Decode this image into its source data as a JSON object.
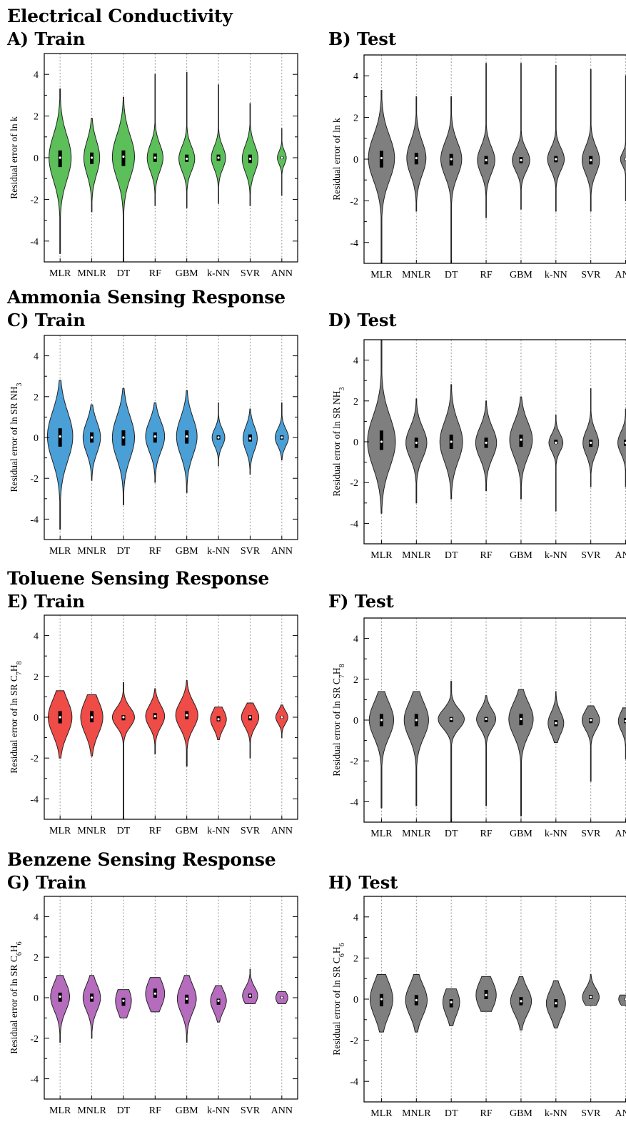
{
  "sections": [
    {
      "title": "Electrical Conductivity"
    },
    {
      "title": "Ammonia Sensing Response"
    },
    {
      "title": "Toluene Sensing Response"
    },
    {
      "title": "Benzene Sensing Response"
    }
  ],
  "colors": {
    "green": "#5cbf5a",
    "blue": "#4a9fd6",
    "red": "#ef4b47",
    "purple": "#b56cbd",
    "gray": "#7f7f7f"
  },
  "chart_data": [
    {
      "panel": "A) Train",
      "type": "violin",
      "color": "#5cbf5a",
      "ylabel": "Residual error of ln k",
      "categories": [
        "MLR",
        "MNLR",
        "DT",
        "RF",
        "GBM",
        "k-NN",
        "SVR",
        "ANN"
      ],
      "yticks": [
        "4",
        "2",
        "0",
        "-2",
        "-4"
      ],
      "ylim": [
        -5,
        5
      ],
      "grid": "vertical dashed",
      "series": [
        {
          "category": "MLR",
          "min": -4.6,
          "max": 3.3,
          "q1": -0.45,
          "q3": 0.35,
          "median": 0.0,
          "spread": 0.7
        },
        {
          "category": "MNLR",
          "min": -2.6,
          "max": 1.9,
          "q1": -0.3,
          "q3": 0.25,
          "median": 0.0,
          "spread": 0.5
        },
        {
          "category": "DT",
          "min": -5.0,
          "max": 2.9,
          "q1": -0.4,
          "q3": 0.35,
          "median": 0.05,
          "spread": 0.7
        },
        {
          "category": "RF",
          "min": -2.3,
          "max": 4.0,
          "q1": -0.2,
          "q3": 0.2,
          "median": 0.0,
          "spread": 0.5
        },
        {
          "category": "GBM",
          "min": -2.4,
          "max": 4.1,
          "q1": -0.2,
          "q3": 0.15,
          "median": -0.05,
          "spread": 0.5
        },
        {
          "category": "k-NN",
          "min": -2.2,
          "max": 3.5,
          "q1": -0.15,
          "q3": 0.15,
          "median": 0.0,
          "spread": 0.45
        },
        {
          "category": "SVR",
          "min": -2.3,
          "max": 2.6,
          "q1": -0.25,
          "q3": 0.15,
          "median": -0.05,
          "spread": 0.5
        },
        {
          "category": "ANN",
          "min": -1.8,
          "max": 1.4,
          "q1": -0.05,
          "q3": 0.05,
          "median": 0.0,
          "spread": 0.28
        }
      ]
    },
    {
      "panel": "B) Test",
      "type": "violin",
      "color": "#7f7f7f",
      "ylabel": "Residual error of ln k",
      "categories": [
        "MLR",
        "MNLR",
        "DT",
        "RF",
        "GBM",
        "k-NN",
        "SVR",
        "ANN"
      ],
      "yticks": [
        "4",
        "2",
        "0",
        "-2",
        "-4"
      ],
      "ylim": [
        -5,
        5
      ],
      "grid": "vertical dashed",
      "series": [
        {
          "category": "MLR",
          "min": -5.0,
          "max": 3.3,
          "q1": -0.4,
          "q3": 0.4,
          "median": 0.05,
          "spread": 0.75
        },
        {
          "category": "MNLR",
          "min": -2.5,
          "max": 3.0,
          "q1": -0.25,
          "q3": 0.3,
          "median": 0.05,
          "spread": 0.55
        },
        {
          "category": "DT",
          "min": -5.0,
          "max": 3.0,
          "q1": -0.3,
          "q3": 0.25,
          "median": 0.0,
          "spread": 0.6
        },
        {
          "category": "RF",
          "min": -2.8,
          "max": 4.6,
          "q1": -0.25,
          "q3": 0.15,
          "median": -0.05,
          "spread": 0.5
        },
        {
          "category": "GBM",
          "min": -2.4,
          "max": 4.6,
          "q1": -0.2,
          "q3": 0.1,
          "median": -0.05,
          "spread": 0.5
        },
        {
          "category": "k-NN",
          "min": -2.5,
          "max": 4.5,
          "q1": -0.15,
          "q3": 0.15,
          "median": 0.0,
          "spread": 0.48
        },
        {
          "category": "SVR",
          "min": -2.5,
          "max": 4.3,
          "q1": -0.25,
          "q3": 0.15,
          "median": -0.05,
          "spread": 0.5
        },
        {
          "category": "ANN",
          "min": -2.0,
          "max": 4.0,
          "q1": -0.05,
          "q3": 0.05,
          "median": 0.0,
          "spread": 0.3
        }
      ]
    },
    {
      "panel": "C) Train",
      "type": "violin",
      "color": "#4a9fd6",
      "ylabel": "Residual error of ln SR NH3",
      "categories": [
        "MLR",
        "MNLR",
        "DT",
        "RF",
        "GBM",
        "k-NN",
        "SVR",
        "ANN"
      ],
      "yticks": [
        "4",
        "2",
        "0",
        "-2",
        "-4"
      ],
      "ylim": [
        -5,
        5
      ],
      "grid": "vertical dashed",
      "series": [
        {
          "category": "MLR",
          "min": -4.5,
          "max": 2.8,
          "q1": -0.45,
          "q3": 0.45,
          "median": 0.05,
          "spread": 0.8
        },
        {
          "category": "MNLR",
          "min": -2.1,
          "max": 1.6,
          "q1": -0.25,
          "q3": 0.25,
          "median": 0.0,
          "spread": 0.55
        },
        {
          "category": "DT",
          "min": -3.3,
          "max": 2.4,
          "q1": -0.4,
          "q3": 0.35,
          "median": 0.0,
          "spread": 0.7
        },
        {
          "category": "RF",
          "min": -2.2,
          "max": 1.7,
          "q1": -0.25,
          "q3": 0.25,
          "median": 0.05,
          "spread": 0.6
        },
        {
          "category": "GBM",
          "min": -2.7,
          "max": 2.3,
          "q1": -0.3,
          "q3": 0.35,
          "median": 0.05,
          "spread": 0.65
        },
        {
          "category": "k-NN",
          "min": -1.4,
          "max": 1.7,
          "q1": -0.1,
          "q3": 0.1,
          "median": 0.0,
          "spread": 0.4
        },
        {
          "category": "SVR",
          "min": -1.8,
          "max": 1.4,
          "q1": -0.2,
          "q3": 0.15,
          "median": -0.05,
          "spread": 0.45
        },
        {
          "category": "ANN",
          "min": -1.1,
          "max": 1.7,
          "q1": -0.1,
          "q3": 0.1,
          "median": 0.0,
          "spread": 0.42
        }
      ]
    },
    {
      "panel": "D) Test",
      "type": "violin",
      "color": "#7f7f7f",
      "ylabel": "Residual error of ln SR NH3",
      "categories": [
        "MLR",
        "MNLR",
        "DT",
        "RF",
        "GBM",
        "k-NN",
        "SVR",
        "ANN"
      ],
      "yticks": [
        "4",
        "2",
        "0",
        "-2",
        "-4"
      ],
      "ylim": [
        -5,
        5
      ],
      "grid": "vertical dashed",
      "series": [
        {
          "category": "MLR",
          "min": -3.5,
          "max": 5.0,
          "q1": -0.4,
          "q3": 0.55,
          "median": 0.0,
          "spread": 0.8
        },
        {
          "category": "MNLR",
          "min": -3.0,
          "max": 2.1,
          "q1": -0.3,
          "q3": 0.2,
          "median": -0.05,
          "spread": 0.6
        },
        {
          "category": "DT",
          "min": -2.8,
          "max": 2.8,
          "q1": -0.35,
          "q3": 0.35,
          "median": 0.0,
          "spread": 0.65
        },
        {
          "category": "RF",
          "min": -2.4,
          "max": 2.0,
          "q1": -0.3,
          "q3": 0.2,
          "median": -0.05,
          "spread": 0.6
        },
        {
          "category": "GBM",
          "min": -2.8,
          "max": 2.2,
          "q1": -0.25,
          "q3": 0.35,
          "median": 0.1,
          "spread": 0.65
        },
        {
          "category": "k-NN",
          "min": -3.4,
          "max": 1.3,
          "q1": -0.1,
          "q3": 0.1,
          "median": -0.05,
          "spread": 0.4
        },
        {
          "category": "SVR",
          "min": -2.2,
          "max": 2.6,
          "q1": -0.25,
          "q3": 0.1,
          "median": -0.05,
          "spread": 0.45
        },
        {
          "category": "ANN",
          "min": -2.2,
          "max": 1.6,
          "q1": -0.2,
          "q3": 0.1,
          "median": -0.05,
          "spread": 0.45
        }
      ]
    },
    {
      "panel": "E) Train",
      "type": "violin",
      "color": "#ef4b47",
      "ylabel": "Residual error of ln SR C7H8",
      "categories": [
        "MLR",
        "MNLR",
        "DT",
        "RF",
        "GBM",
        "k-NN",
        "SVR",
        "ANN"
      ],
      "yticks": [
        "4",
        "2",
        "0",
        "-2",
        "-4"
      ],
      "ylim": [
        -5,
        5
      ],
      "grid": "vertical dashed",
      "series": [
        {
          "category": "MLR",
          "min": -2.0,
          "max": 1.3,
          "q1": -0.3,
          "q3": 0.3,
          "median": 0.0,
          "spread": 0.75
        },
        {
          "category": "MNLR",
          "min": -1.9,
          "max": 1.1,
          "q1": -0.25,
          "q3": 0.3,
          "median": 0.0,
          "spread": 0.7
        },
        {
          "category": "DT",
          "min": -5.0,
          "max": 1.7,
          "q1": -0.15,
          "q3": 0.1,
          "median": 0.0,
          "spread": 0.7
        },
        {
          "category": "RF",
          "min": -1.8,
          "max": 1.4,
          "q1": -0.1,
          "q3": 0.2,
          "median": 0.05,
          "spread": 0.6
        },
        {
          "category": "GBM",
          "min": -2.4,
          "max": 1.8,
          "q1": -0.1,
          "q3": 0.3,
          "median": 0.1,
          "spread": 0.7
        },
        {
          "category": "k-NN",
          "min": -1.1,
          "max": 0.5,
          "q1": -0.2,
          "q3": 0.05,
          "median": -0.1,
          "spread": 0.5
        },
        {
          "category": "SVR",
          "min": -2.0,
          "max": 0.7,
          "q1": -0.15,
          "q3": 0.1,
          "median": 0.0,
          "spread": 0.55
        },
        {
          "category": "ANN",
          "min": -1.0,
          "max": 0.6,
          "q1": -0.05,
          "q3": 0.05,
          "median": 0.0,
          "spread": 0.38
        }
      ]
    },
    {
      "panel": "F) Test",
      "type": "violin",
      "color": "#7f7f7f",
      "ylabel": "Residual error of ln SR C7H8",
      "categories": [
        "MLR",
        "MNLR",
        "DT",
        "RF",
        "GBM",
        "k-NN",
        "SVR",
        "ANN"
      ],
      "yticks": [
        "4",
        "2",
        "0",
        "-2",
        "-4"
      ],
      "ylim": [
        -5,
        5
      ],
      "grid": "vertical dashed",
      "series": [
        {
          "category": "MLR",
          "min": -4.3,
          "max": 1.4,
          "q1": -0.3,
          "q3": 0.3,
          "median": 0.0,
          "spread": 0.7
        },
        {
          "category": "MNLR",
          "min": -4.2,
          "max": 1.4,
          "q1": -0.3,
          "q3": 0.3,
          "median": 0.0,
          "spread": 0.7
        },
        {
          "category": "DT",
          "min": -5.0,
          "max": 1.9,
          "q1": -0.1,
          "q3": 0.15,
          "median": 0.05,
          "spread": 0.75
        },
        {
          "category": "RF",
          "min": -4.2,
          "max": 1.2,
          "q1": -0.1,
          "q3": 0.15,
          "median": 0.05,
          "spread": 0.55
        },
        {
          "category": "GBM",
          "min": -4.7,
          "max": 1.5,
          "q1": -0.25,
          "q3": 0.3,
          "median": 0.05,
          "spread": 0.7
        },
        {
          "category": "k-NN",
          "min": -1.1,
          "max": 1.4,
          "q1": -0.3,
          "q3": 0.0,
          "median": -0.15,
          "spread": 0.45
        },
        {
          "category": "SVR",
          "min": -3.0,
          "max": 0.7,
          "q1": -0.15,
          "q3": 0.1,
          "median": 0.0,
          "spread": 0.5
        },
        {
          "category": "ANN",
          "min": -1.9,
          "max": 0.6,
          "q1": -0.15,
          "q3": 0.1,
          "median": -0.05,
          "spread": 0.42
        }
      ]
    },
    {
      "panel": "G) Train",
      "type": "violin",
      "color": "#b56cbd",
      "ylabel": "Residual error of ln SR C6H6",
      "categories": [
        "MLR",
        "MNLR",
        "DT",
        "RF",
        "GBM",
        "k-NN",
        "SVR",
        "ANN"
      ],
      "yticks": [
        "4",
        "2",
        "0",
        "-2",
        "-4"
      ],
      "ylim": [
        -5,
        5
      ],
      "grid": "vertical dashed",
      "series": [
        {
          "category": "MLR",
          "min": -2.2,
          "max": 1.1,
          "q1": -0.2,
          "q3": 0.25,
          "median": 0.05,
          "spread": 0.6
        },
        {
          "category": "MNLR",
          "min": -2.0,
          "max": 1.1,
          "q1": -0.2,
          "q3": 0.2,
          "median": 0.0,
          "spread": 0.55
        },
        {
          "category": "DT",
          "min": -1.0,
          "max": 0.4,
          "q1": -0.4,
          "q3": 0.0,
          "median": -0.15,
          "spread": 0.5
        },
        {
          "category": "RF",
          "min": -0.7,
          "max": 1.0,
          "q1": 0.0,
          "q3": 0.45,
          "median": 0.2,
          "spread": 0.6
        },
        {
          "category": "GBM",
          "min": -2.2,
          "max": 1.1,
          "q1": -0.3,
          "q3": 0.15,
          "median": -0.05,
          "spread": 0.6
        },
        {
          "category": "k-NN",
          "min": -1.2,
          "max": 0.6,
          "q1": -0.35,
          "q3": -0.05,
          "median": -0.15,
          "spread": 0.5
        },
        {
          "category": "SVR",
          "min": -0.3,
          "max": 1.4,
          "q1": 0.0,
          "q3": 0.2,
          "median": 0.1,
          "spread": 0.48
        },
        {
          "category": "ANN",
          "min": -0.3,
          "max": 0.3,
          "q1": -0.05,
          "q3": 0.05,
          "median": 0.0,
          "spread": 0.38
        }
      ]
    },
    {
      "panel": "H) Test",
      "type": "violin",
      "color": "#7f7f7f",
      "ylabel": "Residual error of ln SR C6H6",
      "categories": [
        "MLR",
        "MNLR",
        "DT",
        "RF",
        "GBM",
        "k-NN",
        "SVR",
        "ANN"
      ],
      "yticks": [
        "4",
        "2",
        "0",
        "-2",
        "-4"
      ],
      "ylim": [
        -5,
        5
      ],
      "grid": "vertical dashed",
      "series": [
        {
          "category": "MLR",
          "min": -1.6,
          "max": 1.2,
          "q1": -0.35,
          "q3": 0.25,
          "median": 0.0,
          "spread": 0.65
        },
        {
          "category": "MNLR",
          "min": -1.6,
          "max": 1.2,
          "q1": -0.3,
          "q3": 0.2,
          "median": -0.05,
          "spread": 0.62
        },
        {
          "category": "DT",
          "min": -1.3,
          "max": 0.5,
          "q1": -0.4,
          "q3": 0.0,
          "median": -0.15,
          "spread": 0.48
        },
        {
          "category": "RF",
          "min": -0.6,
          "max": 1.1,
          "q1": 0.0,
          "q3": 0.45,
          "median": 0.2,
          "spread": 0.58
        },
        {
          "category": "GBM",
          "min": -1.5,
          "max": 1.1,
          "q1": -0.3,
          "q3": 0.1,
          "median": -0.1,
          "spread": 0.6
        },
        {
          "category": "k-NN",
          "min": -1.4,
          "max": 0.9,
          "q1": -0.4,
          "q3": 0.0,
          "median": -0.2,
          "spread": 0.55
        },
        {
          "category": "SVR",
          "min": -0.3,
          "max": 1.2,
          "q1": 0.0,
          "q3": 0.2,
          "median": 0.1,
          "spread": 0.48
        },
        {
          "category": "ANN",
          "min": -0.3,
          "max": 0.2,
          "q1": -0.05,
          "q3": 0.05,
          "median": 0.0,
          "spread": 0.4
        }
      ]
    }
  ]
}
